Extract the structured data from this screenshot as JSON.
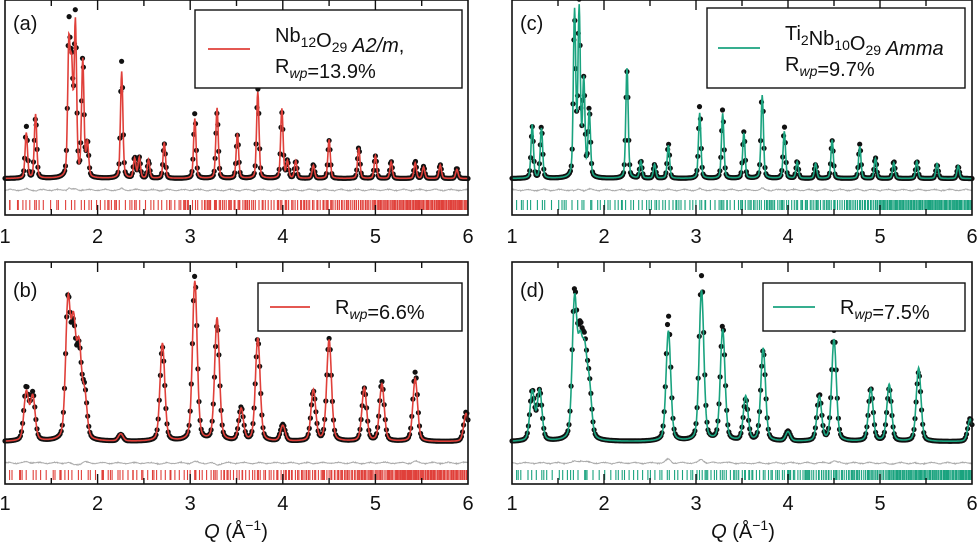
{
  "chart_data": [
    {
      "panel": "(a)",
      "type": "line",
      "color": "#e0403a",
      "legend": [
        {
          "t": "Nb"
        },
        {
          "t": "12",
          "s": "sub"
        },
        {
          "t": "O"
        },
        {
          "t": "29",
          "s": "sub"
        },
        {
          "t": "  A2/m",
          "s": "it"
        },
        {
          "t": ","
        },
        {
          "t": "R",
          "nl": true
        },
        {
          "t": "wp",
          "s": "subit"
        },
        {
          "t": "=13.9%"
        }
      ],
      "rwp": "13.9%",
      "xlim": [
        1,
        6
      ],
      "xticks": [
        "1",
        "2",
        "3",
        "4",
        "5",
        "6"
      ],
      "peaks": [
        [
          1.23,
          0.3
        ],
        [
          1.33,
          0.35
        ],
        [
          1.69,
          0.85
        ],
        [
          1.72,
          0.6
        ],
        [
          1.76,
          0.93
        ],
        [
          1.84,
          0.7
        ],
        [
          1.89,
          0.2
        ],
        [
          2.26,
          0.68
        ],
        [
          2.4,
          0.12
        ],
        [
          2.45,
          0.12
        ],
        [
          2.55,
          0.1
        ],
        [
          2.72,
          0.2
        ],
        [
          3.05,
          0.38
        ],
        [
          3.29,
          0.38
        ],
        [
          3.51,
          0.25
        ],
        [
          3.73,
          0.52
        ],
        [
          3.99,
          0.38
        ],
        [
          4.05,
          0.1
        ],
        [
          4.14,
          0.1
        ],
        [
          4.33,
          0.08
        ],
        [
          4.5,
          0.22
        ],
        [
          4.82,
          0.18
        ],
        [
          5.0,
          0.13
        ],
        [
          5.17,
          0.1
        ],
        [
          5.43,
          0.1
        ],
        [
          5.52,
          0.07
        ],
        [
          5.7,
          0.08
        ],
        [
          5.88,
          0.06
        ]
      ],
      "peak_width": 0.018
    },
    {
      "panel": "(b)",
      "type": "line",
      "color": "#e0403a",
      "legend": [
        {
          "t": "R"
        },
        {
          "t": "wp",
          "s": "subit"
        },
        {
          "t": "=6.6%"
        }
      ],
      "rwp": "6.6%",
      "xlim": [
        1,
        6
      ],
      "xticks": [
        "1",
        "2",
        "3",
        "4",
        "5",
        "6"
      ],
      "peaks": [
        [
          1.23,
          0.32
        ],
        [
          1.3,
          0.28
        ],
        [
          1.68,
          0.82
        ],
        [
          1.74,
          0.6
        ],
        [
          1.8,
          0.5
        ],
        [
          1.86,
          0.28
        ],
        [
          2.25,
          0.04
        ],
        [
          2.7,
          0.57
        ],
        [
          3.05,
          1.0
        ],
        [
          3.29,
          0.7
        ],
        [
          3.55,
          0.2
        ],
        [
          3.73,
          0.62
        ],
        [
          4.0,
          0.1
        ],
        [
          4.33,
          0.3
        ],
        [
          4.5,
          0.62
        ],
        [
          4.88,
          0.32
        ],
        [
          5.07,
          0.36
        ],
        [
          5.43,
          0.42
        ],
        [
          5.98,
          0.18
        ]
      ],
      "peak_width": 0.035
    },
    {
      "panel": "(c)",
      "type": "line",
      "color": "#1aa37f",
      "legend": [
        {
          "t": "Ti"
        },
        {
          "t": "2",
          "s": "sub"
        },
        {
          "t": "Nb"
        },
        {
          "t": "10",
          "s": "sub"
        },
        {
          "t": "O"
        },
        {
          "t": "29",
          "s": "sub"
        },
        {
          "t": "  Amma",
          "s": "it"
        },
        {
          "t": "R",
          "nl": true
        },
        {
          "t": "wp",
          "s": "subit"
        },
        {
          "t": "=9.7%"
        }
      ],
      "rwp": "9.7%",
      "xlim": [
        1,
        6
      ],
      "xticks": [
        "1",
        "2",
        "3",
        "4",
        "5",
        "6"
      ],
      "peaks": [
        [
          1.22,
          0.3
        ],
        [
          1.32,
          0.3
        ],
        [
          1.68,
          0.9
        ],
        [
          1.73,
          1.0
        ],
        [
          1.78,
          0.55
        ],
        [
          1.84,
          0.4
        ],
        [
          2.25,
          0.62
        ],
        [
          2.4,
          0.1
        ],
        [
          2.55,
          0.08
        ],
        [
          2.7,
          0.2
        ],
        [
          3.04,
          0.42
        ],
        [
          3.29,
          0.4
        ],
        [
          3.52,
          0.27
        ],
        [
          3.72,
          0.55
        ],
        [
          3.96,
          0.3
        ],
        [
          4.1,
          0.1
        ],
        [
          4.3,
          0.08
        ],
        [
          4.48,
          0.22
        ],
        [
          4.78,
          0.2
        ],
        [
          4.95,
          0.12
        ],
        [
          5.15,
          0.1
        ],
        [
          5.4,
          0.1
        ],
        [
          5.62,
          0.08
        ],
        [
          5.85,
          0.07
        ]
      ],
      "peak_width": 0.018
    },
    {
      "panel": "(d)",
      "type": "line",
      "color": "#1aa37f",
      "legend": [
        {
          "t": "R"
        },
        {
          "t": "wp",
          "s": "subit"
        },
        {
          "t": "=7.5%"
        }
      ],
      "rwp": "7.5%",
      "xlim": [
        1,
        6
      ],
      "xticks": [
        "1",
        "2",
        "3",
        "4",
        "5",
        "6"
      ],
      "peaks": [
        [
          1.22,
          0.3
        ],
        [
          1.3,
          0.3
        ],
        [
          1.68,
          0.86
        ],
        [
          1.74,
          0.55
        ],
        [
          1.79,
          0.48
        ],
        [
          1.84,
          0.3
        ],
        [
          2.7,
          0.76
        ],
        [
          3.06,
          1.0
        ],
        [
          3.29,
          0.7
        ],
        [
          3.54,
          0.25
        ],
        [
          3.73,
          0.55
        ],
        [
          4.0,
          0.06
        ],
        [
          4.34,
          0.28
        ],
        [
          4.5,
          0.67
        ],
        [
          4.9,
          0.32
        ],
        [
          5.1,
          0.32
        ],
        [
          5.42,
          0.42
        ],
        [
          5.98,
          0.14
        ]
      ],
      "peak_width": 0.035
    }
  ],
  "xlabel": {
    "q": "Q",
    "unit": " (Å",
    "exp": "−1",
    "close": ")"
  }
}
